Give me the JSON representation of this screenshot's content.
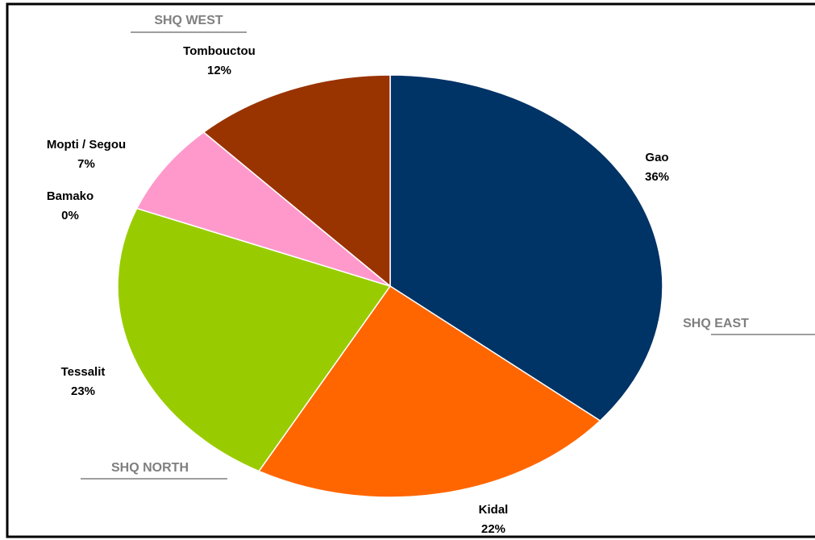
{
  "chart_data": {
    "type": "pie",
    "categories": [
      "Gao",
      "Kidal",
      "Tessalit",
      "Bamako",
      "Mopti / Segou",
      "Tombouctou"
    ],
    "values": [
      36,
      22,
      23,
      0,
      7,
      12
    ],
    "value_labels": [
      "36%",
      "22%",
      "23%",
      "0%",
      "7%",
      "12%"
    ],
    "colors": [
      "#003366",
      "#ff6600",
      "#99cc00",
      "#999999",
      "#ff99cc",
      "#993300"
    ],
    "annotations": [
      "SHQ WEST",
      "SHQ EAST",
      "SHQ NORTH"
    ]
  }
}
